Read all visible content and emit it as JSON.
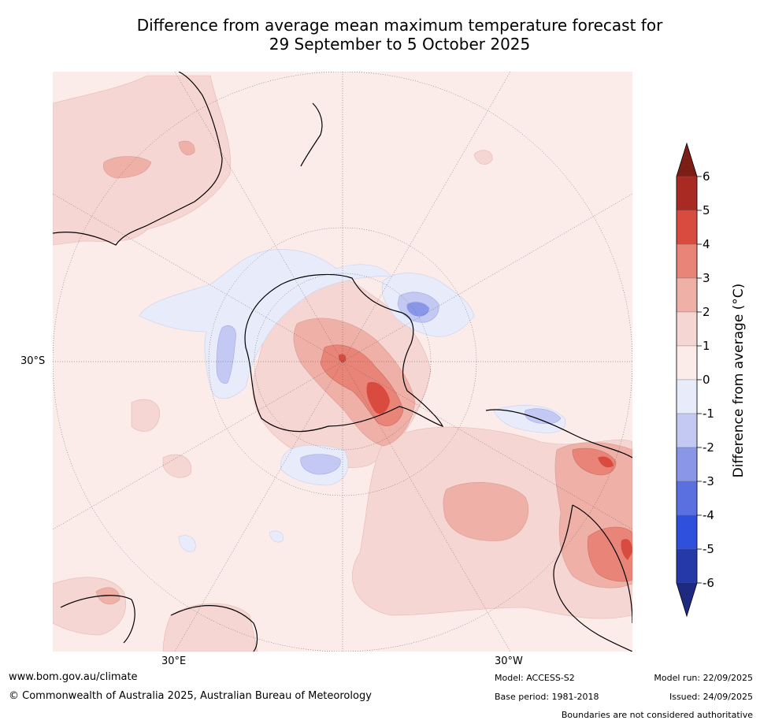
{
  "title": {
    "line1": "Difference from average mean maximum temperature forecast for",
    "line2": "29 September to 5 October 2025"
  },
  "map": {
    "projection": "south-polar-stereographic",
    "lat_label": "30°S",
    "lon_labels": [
      "30°E",
      "30°W"
    ],
    "colors": {
      "land_outline": "#000000",
      "graticule": "#555555",
      "ocean_default": "#fbebe9"
    }
  },
  "colorbar": {
    "label": "Difference from average (°C)",
    "ticks": [
      "6",
      "5",
      "4",
      "3",
      "2",
      "1",
      "0",
      "-1",
      "-2",
      "-3",
      "-4",
      "-5",
      "-6"
    ],
    "colors_top_to_bottom": [
      "#a82a22",
      "#d94b3e",
      "#e88578",
      "#eeb0a7",
      "#f6d6d2",
      "#fbebe9",
      "#e8ecfa",
      "#c3c9f2",
      "#8a97e8",
      "#5b70e0",
      "#2f50dc",
      "#2539a8"
    ],
    "extend_high_color": "#7c1d16",
    "extend_low_color": "#1e2a80"
  },
  "footer": {
    "url": "www.bom.gov.au/climate",
    "copyright": "© Commonwealth of Australia 2025, Australian Bureau of Meteorology",
    "model": "Model: ACCESS-S2",
    "base_period": "Base period: 1981-2018",
    "model_run": "Model run: 22/09/2025",
    "issued": "Issued: 24/09/2025",
    "disclaimer": "Boundaries are not considered authoritative"
  }
}
